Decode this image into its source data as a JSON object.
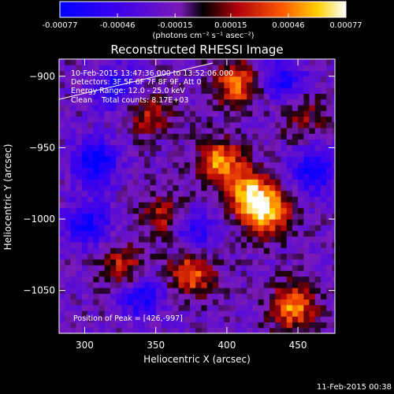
{
  "chart_data": {
    "type": "heatmap",
    "title": "Reconstructed RHESSI Image",
    "xlabel": "Heliocentric X (arcsec)",
    "ylabel": "Heliocentric Y (arcsec)",
    "xlim": [
      282,
      476
    ],
    "ylim": [
      -1080,
      -888
    ],
    "x_ticks": [
      300,
      350,
      400,
      450
    ],
    "y_ticks": [
      -900,
      -950,
      -1000,
      -1050
    ],
    "colorbar": {
      "ticks": [
        "-0.00077",
        "-0.00046",
        "-0.00015",
        "0.00015",
        "0.00046",
        "0.00077"
      ],
      "label": "(photons cm⁻² s⁻¹ asec⁻²)",
      "range": [
        -0.00077,
        0.00077
      ]
    },
    "annotations": [
      "10-Feb-2015 13:47:36.000 to 13:52:06.000",
      "Detectors: 3F 5F 6F 7F 8F 9F, Att 0",
      "Energy Range: 12.0 - 25.0 keV",
      "Clean    Total counts: 8.17E+03"
    ],
    "peak_label": "Position of Peak = [426,-997]",
    "peak": [
      426,
      -997
    ],
    "bright_features": [
      {
        "x": 393,
        "y": -962,
        "value": 0.0007
      },
      {
        "x": 414,
        "y": -984,
        "value": 0.00072
      },
      {
        "x": 426,
        "y": -997,
        "value": 0.00077
      },
      {
        "x": 405,
        "y": -907,
        "value": 0.00062
      },
      {
        "x": 373,
        "y": -1040,
        "value": 0.0006
      },
      {
        "x": 444,
        "y": -1063,
        "value": 0.00068
      },
      {
        "x": 354,
        "y": -1000,
        "value": 0.0004
      },
      {
        "x": 325,
        "y": -1036,
        "value": 0.00045
      },
      {
        "x": 343,
        "y": -928,
        "value": 0.00038
      },
      {
        "x": 452,
        "y": -930,
        "value": 0.0003
      }
    ],
    "dim_features": [
      {
        "x": 305,
        "y": -962,
        "value": -0.0006
      },
      {
        "x": 338,
        "y": -1055,
        "value": -0.0005
      },
      {
        "x": 460,
        "y": -968,
        "value": -0.00055
      },
      {
        "x": 438,
        "y": -905,
        "value": -0.00045
      },
      {
        "x": 375,
        "y": -1010,
        "value": -0.0004
      },
      {
        "x": 320,
        "y": -910,
        "value": -0.00045
      },
      {
        "x": 300,
        "y": -1005,
        "value": -0.0005
      }
    ]
  },
  "footer": {
    "timestamp": "11-Feb-2015 00:38"
  }
}
